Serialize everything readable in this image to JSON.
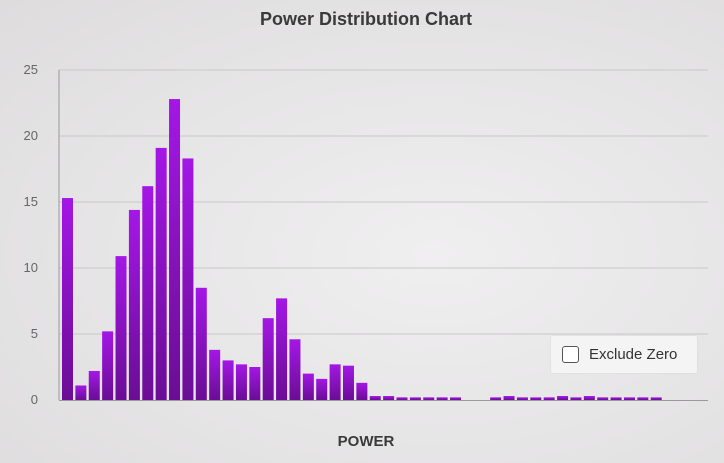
{
  "chart_data": {
    "type": "bar",
    "title": "Power Distribution Chart",
    "xlabel": "POWER",
    "ylabel": "",
    "ylim": [
      0,
      25
    ],
    "yticks": [
      0,
      5,
      10,
      15,
      20,
      25
    ],
    "grid": true,
    "values": [
      15.3,
      1.1,
      2.2,
      5.2,
      10.9,
      14.4,
      16.2,
      19.1,
      22.8,
      18.3,
      8.5,
      3.8,
      3.0,
      2.7,
      2.5,
      6.2,
      7.7,
      4.6,
      2.0,
      1.6,
      2.7,
      2.6,
      1.3,
      0.3,
      0.3,
      0.2,
      0.2,
      0.2,
      0.2,
      0.2,
      0,
      0,
      0.2,
      0.3,
      0.2,
      0.2,
      0.2,
      0.3,
      0.2,
      0.3,
      0.2,
      0.2,
      0.2,
      0.2,
      0.2
    ],
    "colors": {
      "bar_top": "#a417e6",
      "bar_bottom": "#6a0d95",
      "grid": "#c9c8c9",
      "axis": "#9a9a9a"
    }
  },
  "controls": {
    "exclude_zero": {
      "label": "Exclude Zero",
      "checked": false
    }
  }
}
